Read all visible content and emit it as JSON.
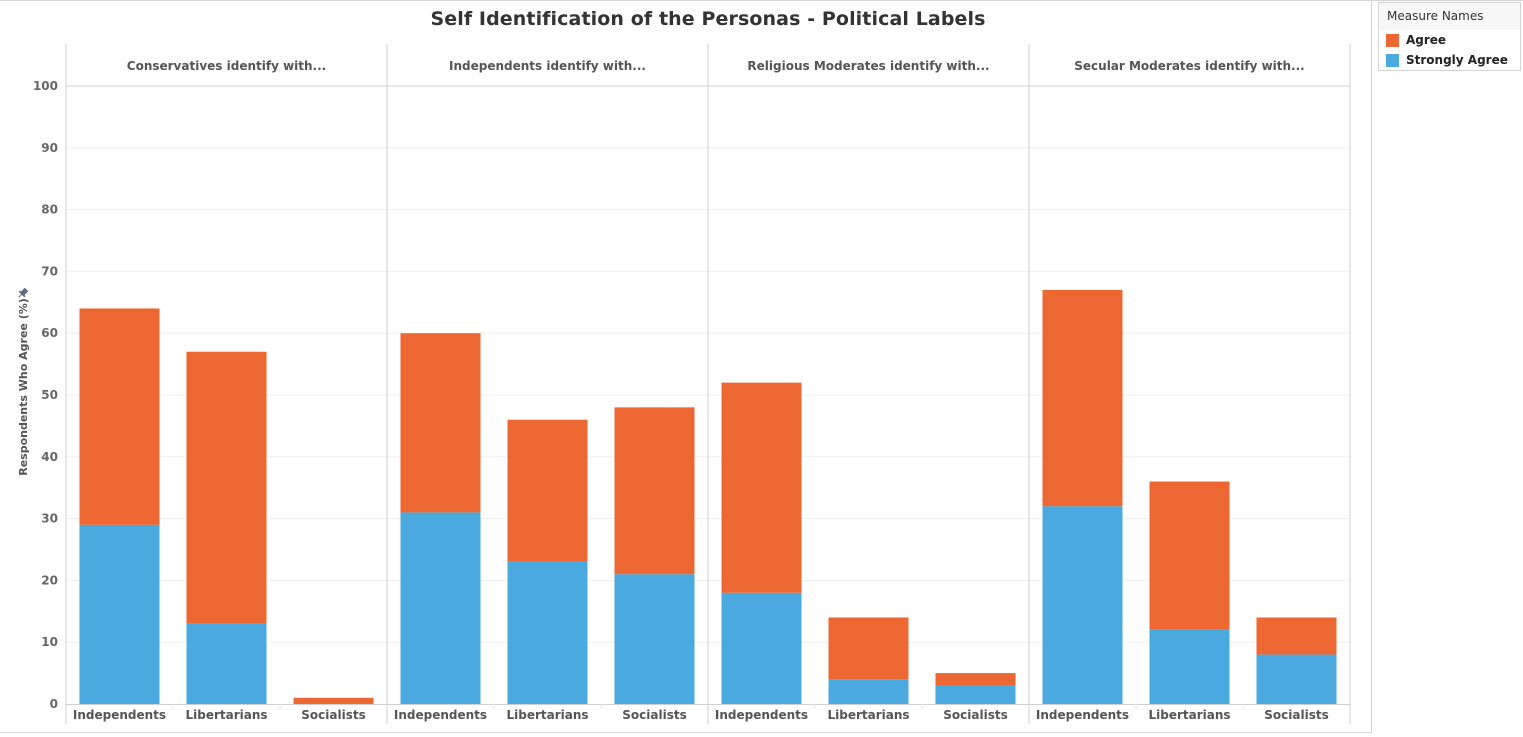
{
  "chart_data": {
    "type": "bar",
    "stacked": true,
    "title": "Self Identification of the Personas - Political Labels",
    "ylabel": "Respondents Who Agree (%)",
    "xlabel": "",
    "ylim": [
      0,
      100
    ],
    "yticks": [
      0,
      10,
      20,
      30,
      40,
      50,
      60,
      70,
      80,
      90,
      100
    ],
    "grid": true,
    "legend": {
      "title": "Measure Names",
      "placement": "top-right",
      "entries": [
        {
          "name": "Agree",
          "color": "#EC6731"
        },
        {
          "name": "Strongly Agree",
          "color": "#4AAAE0"
        }
      ]
    },
    "categories": [
      "Independents",
      "Libertarians",
      "Socialists"
    ],
    "panels": [
      {
        "header": "Conservatives identify with...",
        "series": [
          {
            "name": "Strongly Agree",
            "values": [
              29,
              13,
              0
            ]
          },
          {
            "name": "Agree",
            "values": [
              35,
              44,
              1
            ]
          }
        ]
      },
      {
        "header": "Independents identify with...",
        "series": [
          {
            "name": "Strongly Agree",
            "values": [
              31,
              23,
              21
            ]
          },
          {
            "name": "Agree",
            "values": [
              29,
              23,
              27
            ]
          }
        ]
      },
      {
        "header": "Religious Moderates identify with...",
        "series": [
          {
            "name": "Strongly Agree",
            "values": [
              18,
              4,
              3
            ]
          },
          {
            "name": "Agree",
            "values": [
              34,
              10,
              2
            ]
          }
        ]
      },
      {
        "header": "Secular Moderates identify with...",
        "series": [
          {
            "name": "Strongly Agree",
            "values": [
              32,
              12,
              8
            ]
          },
          {
            "name": "Agree",
            "values": [
              35,
              24,
              6
            ]
          }
        ]
      }
    ]
  },
  "icons": {
    "y_axis_pin": "pin-icon"
  }
}
